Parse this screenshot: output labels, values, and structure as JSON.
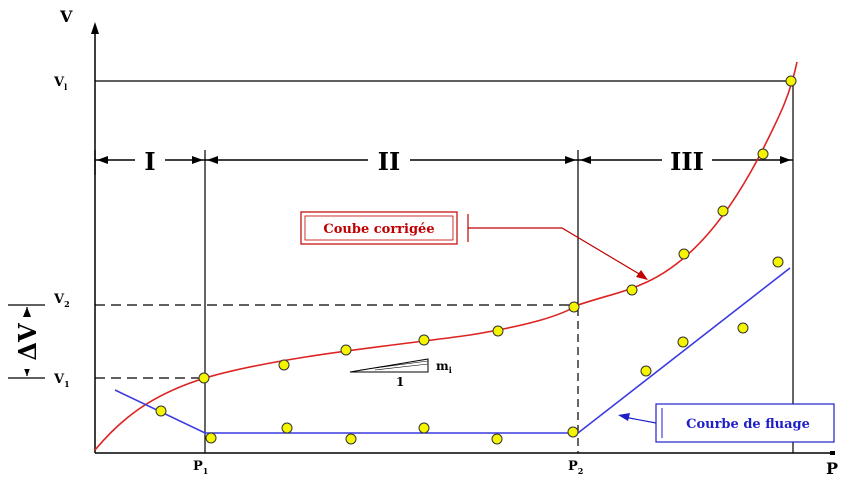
{
  "axes": {
    "x_label": "P",
    "y_label": "V"
  },
  "ticks": {
    "p1": {
      "main": "P",
      "sub": "1"
    },
    "p2": {
      "main": "P",
      "sub": "2"
    },
    "v1_top": {
      "main": "V",
      "sub": "l"
    },
    "v2": {
      "main": "V",
      "sub": "2"
    },
    "v1": {
      "main": "V",
      "sub": "1"
    }
  },
  "zones": [
    "I",
    "II",
    "III"
  ],
  "slope": {
    "run": "1",
    "rise": "m",
    "rise_sub": "i"
  },
  "delta_label": "ΔV",
  "legend": {
    "corrected": "Coube corrigée",
    "creep": "Courbe de fluage"
  },
  "colors": {
    "corrected_curve": "#dd2222",
    "creep_curve": "#3a3ae0",
    "point_fill": "#f5f500",
    "point_stroke": "#333333"
  }
}
